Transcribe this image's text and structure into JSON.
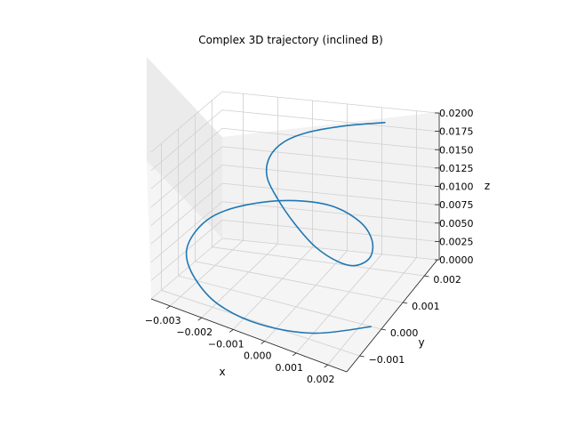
{
  "chart_data": {
    "type": "line3d",
    "title": "Complex 3D trajectory (inclined B)",
    "xlabel": "x",
    "ylabel": "y",
    "zlabel": "z",
    "grid": true,
    "xticks": [
      "−0.003",
      "−0.002",
      "−0.001",
      "0.000",
      "0.001",
      "0.002"
    ],
    "yticks": [
      "−0.001",
      "0.000",
      "0.001",
      "0.002"
    ],
    "zticks": [
      "0.0000",
      "0.0025",
      "0.0050",
      "0.0075",
      "0.0100",
      "0.0125",
      "0.0150",
      "0.0175",
      "0.0200"
    ],
    "series": [
      {
        "color": "#1f77b4",
        "x": [
          0.0023,
          0.0011,
          -0.0003,
          -0.0016,
          -0.0026,
          -0.0033,
          -0.0035,
          -0.0033,
          -0.0026,
          -0.0015,
          -0.0002,
          0.001,
          0.0018,
          0.0022,
          0.0021,
          0.0017,
          0.0009,
          0.0,
          -0.0008,
          -0.0014,
          -0.0016,
          -0.0014,
          -0.0008,
          0.0002,
          0.0014
        ],
        "y": [
          0.0,
          -0.0009,
          -0.0014,
          -0.0014,
          -0.0009,
          -0.0001,
          0.0008,
          0.0016,
          0.0021,
          0.0023,
          0.0021,
          0.0015,
          0.0008,
          0.0001,
          -0.0004,
          -0.0006,
          -0.0005,
          -0.0001,
          0.0004,
          0.0009,
          0.0014,
          0.0018,
          0.002,
          0.0021,
          0.0021
        ],
        "z": [
          0.0,
          0.0006,
          0.0013,
          0.002,
          0.0028,
          0.0036,
          0.0045,
          0.0054,
          0.0062,
          0.0069,
          0.0075,
          0.008,
          0.0085,
          0.009,
          0.0095,
          0.0101,
          0.0108,
          0.0117,
          0.0127,
          0.0138,
          0.015,
          0.0162,
          0.0174,
          0.0186,
          0.0198
        ]
      }
    ]
  }
}
